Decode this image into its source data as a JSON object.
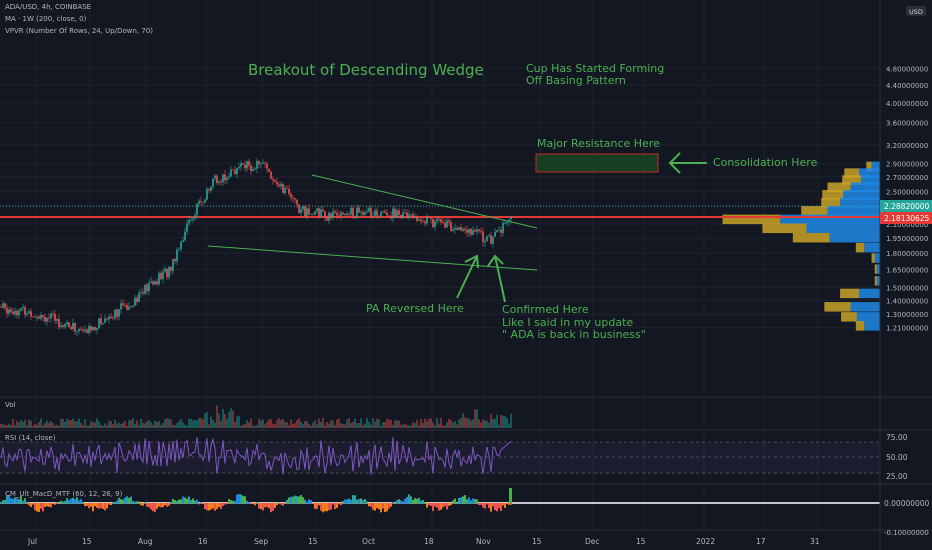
{
  "header": {
    "symbol_line": "ADA/USD, 4h, COINBASE",
    "ma_line": "MA · 1W (200, close, 0)",
    "vpvr_line": "VPVR (Number Of Rows, 24, Up/Down, 70)",
    "vol_label": "Vol",
    "rsi_label": "RSI (14, close)",
    "macd_label": "CM_Ult_MacD_MTF (60, 12, 26, 9)",
    "currency": "USD"
  },
  "annotations": {
    "title": "Breakout of Descending Wedge",
    "cup_line1": "Cup Has Started Forming",
    "cup_line2": "Off Basing Pattern",
    "resistance": "Major Resistance Here",
    "consolidation": "Consolidation Here",
    "pa_reversed": "PA Reversed Here",
    "confirmed1": "Confirmed Here",
    "confirmed2": "Like I said in my update",
    "confirmed3": "\" ADA is back in business\""
  },
  "price_axis": {
    "ticks": [
      "4.80000000",
      "4.40000000",
      "4.00000000",
      "3.60000000",
      "3.20000000",
      "2.90000000",
      "2.70000000",
      "2.50000000",
      "2.30000000",
      "2.10000000",
      "1.95000000",
      "1.80000000",
      "1.65000000",
      "1.50000000",
      "1.40000000",
      "1.30000000",
      "1.21000000"
    ],
    "last_price": "2.28820000",
    "ma_price": "2.18130625"
  },
  "rsi_axis": [
    "75.00",
    "50.00",
    "25.00"
  ],
  "macd_axis": [
    "0.00000000",
    "-0.10000000"
  ],
  "time_axis": [
    "Jul",
    "15",
    "Aug",
    "16",
    "Sep",
    "15",
    "Oct",
    "18",
    "Nov",
    "15",
    "Dec",
    "15",
    "2022",
    "17",
    "31"
  ],
  "colors": {
    "background": "#131722",
    "candle_up": "#26a69a",
    "candle_down": "#ef5350",
    "annotation": "#4caf50",
    "ma_line": "#e53935",
    "rsi_line": "#7e57c2",
    "vpvr_up": "#1e88e5",
    "vpvr_down": "#c9a227"
  },
  "chart_data": [
    {
      "type": "candlestick",
      "title": "ADA/USD, 4h, COINBASE",
      "x": [
        "2021-07-01",
        "2021-07-10",
        "2021-07-20",
        "2021-08-01",
        "2021-08-10",
        "2021-08-16",
        "2021-08-22",
        "2021-09-01",
        "2021-09-05",
        "2021-09-12",
        "2021-09-20",
        "2021-10-01",
        "2021-10-10",
        "2021-10-18",
        "2021-10-25",
        "2021-11-01",
        "2021-11-06",
        "2021-11-10"
      ],
      "close": [
        1.35,
        1.3,
        1.18,
        1.38,
        1.65,
        2.15,
        2.65,
        2.85,
        2.9,
        2.5,
        2.25,
        2.2,
        2.25,
        2.1,
        2.05,
        1.92,
        2.0,
        2.2
      ],
      "ylim": [
        1.1,
        4.9
      ],
      "scale": "log",
      "ma_200_weekly": 2.1813,
      "last_price": 2.2882,
      "annotations": [
        {
          "text": "Breakout of Descending Wedge"
        },
        {
          "text": "Major Resistance Here",
          "zone": [
            2.6,
            2.75
          ]
        }
      ]
    },
    {
      "type": "bar",
      "title": "VPVR (Number Of Rows, 24, Up/Down, 70)",
      "categories": [
        "2.85",
        "2.75",
        "2.65",
        "2.55",
        "2.45",
        "2.35",
        "2.25",
        "2.15",
        "2.05",
        "1.95",
        "1.85",
        "1.75",
        "1.65",
        "1.55",
        "1.45",
        "1.35",
        "1.28",
        "1.22"
      ],
      "series": [
        {
          "name": "Up",
          "values": [
            8,
            20,
            18,
            28,
            35,
            38,
            50,
            95,
            70,
            48,
            15,
            5,
            3,
            3,
            20,
            28,
            22,
            15
          ]
        },
        {
          "name": "Down",
          "values": [
            5,
            14,
            18,
            22,
            20,
            18,
            25,
            55,
            42,
            35,
            8,
            3,
            2,
            2,
            18,
            25,
            15,
            8
          ]
        }
      ]
    },
    {
      "type": "line",
      "title": "RSI (14, close)",
      "ylim": [
        15,
        85
      ],
      "levels": [
        70,
        50,
        30
      ]
    }
  ]
}
